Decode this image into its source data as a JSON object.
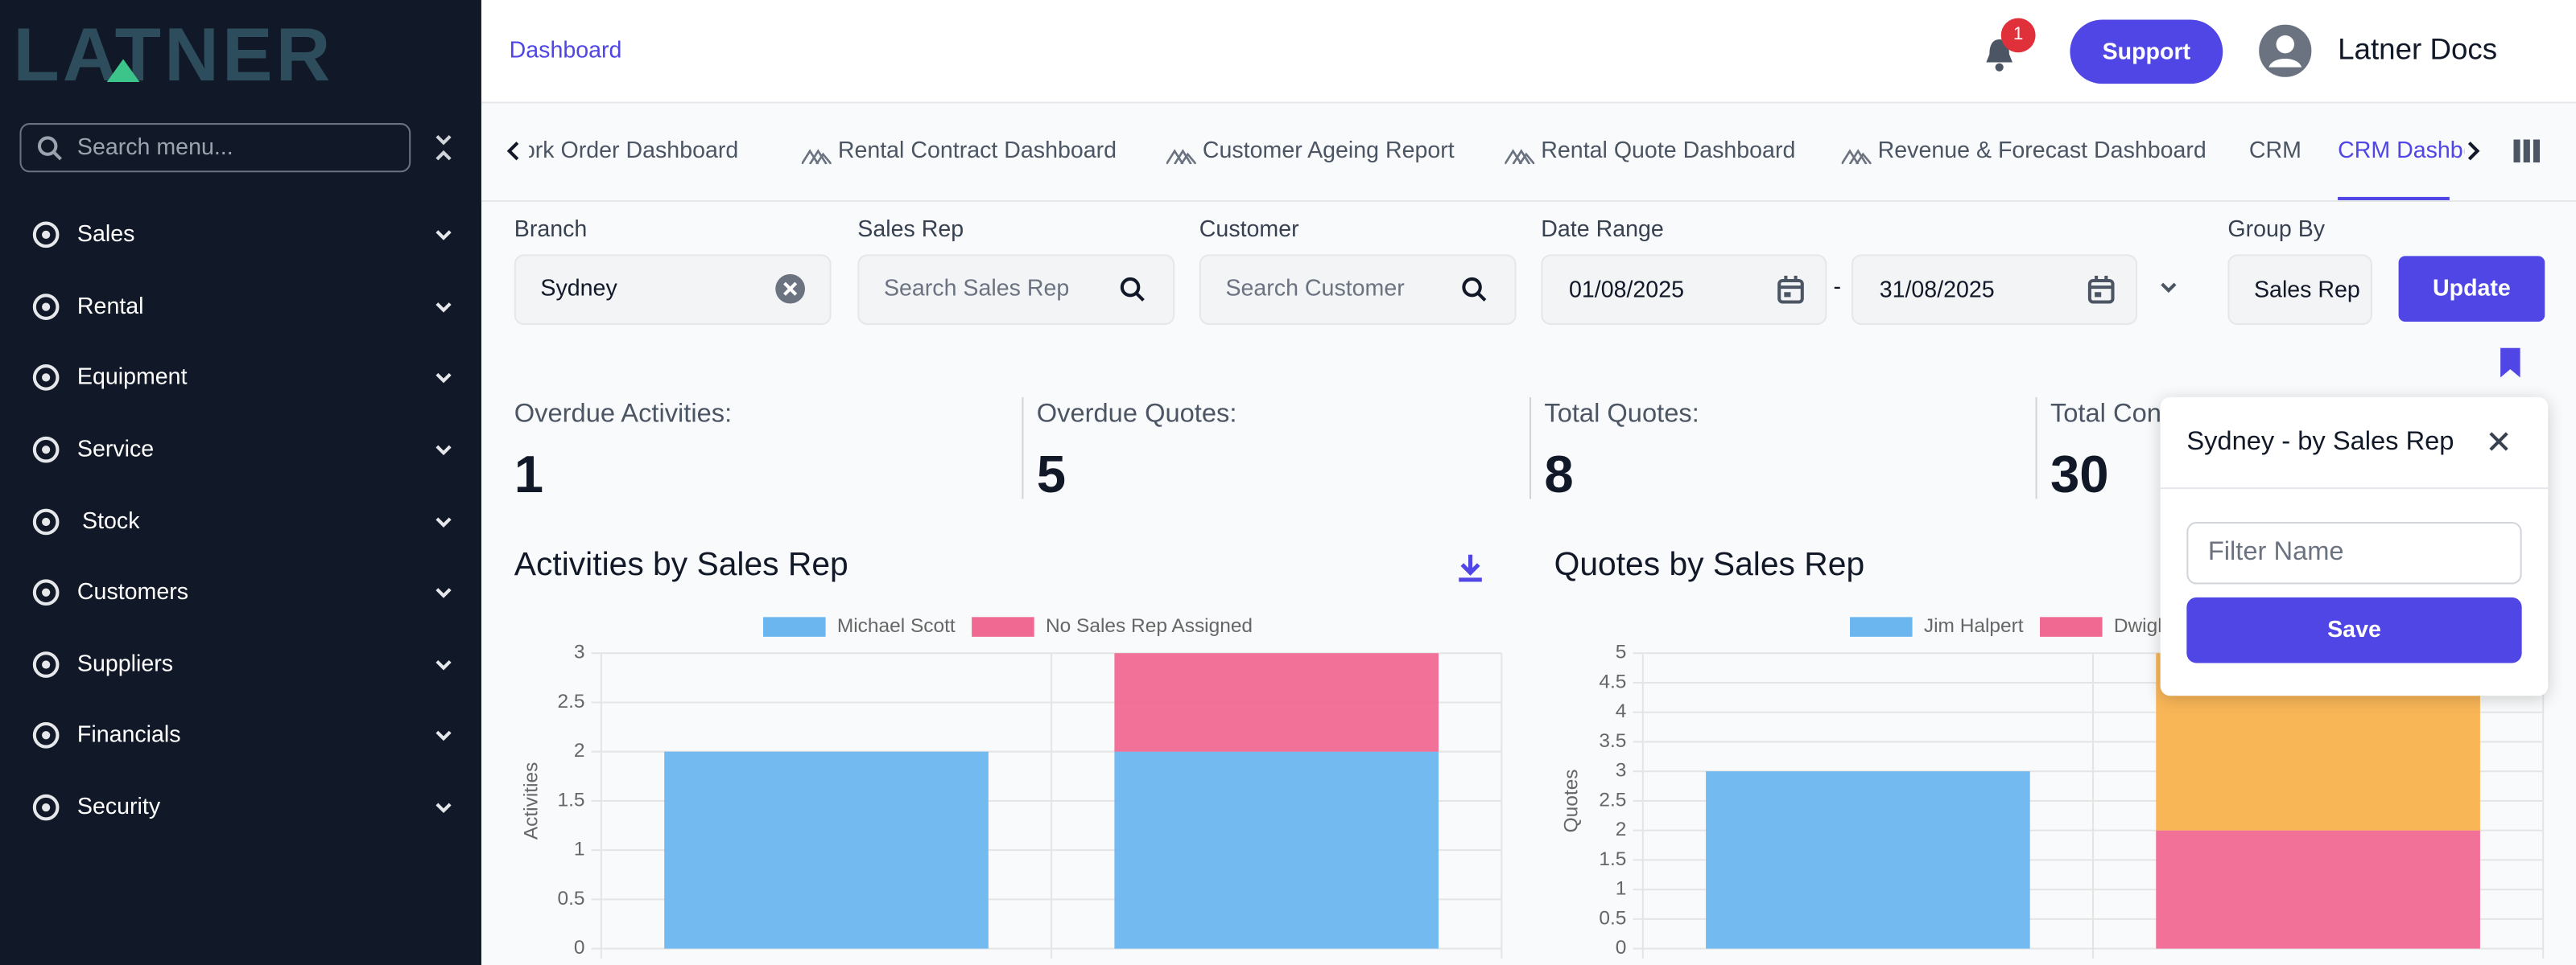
{
  "sidebar": {
    "logo": "LATNER",
    "search_placeholder": "Search menu...",
    "menu": [
      "Sales",
      "Rental",
      "Equipment",
      "Service",
      "Stock",
      "Customers",
      "Suppliers",
      "Financials",
      "Security"
    ]
  },
  "header": {
    "breadcrumb": "Dashboard",
    "notifications": 1,
    "support": "Support",
    "user": "Latner Docs"
  },
  "tabs": [
    "Work Order Dashboard",
    "Rental Contract Dashboard",
    "Customer Ageing Report",
    "Rental Quote Dashboard",
    "Revenue & Forecast Dashboard",
    "CRM",
    "CRM Dashboard"
  ],
  "filters": {
    "branch": {
      "label": "Branch",
      "value": "Sydney"
    },
    "sales_rep": {
      "label": "Sales Rep",
      "placeholder": "Search Sales Rep"
    },
    "customer": {
      "label": "Customer",
      "placeholder": "Search Customer"
    },
    "date_range": {
      "label": "Date Range",
      "from": "01/08/2025",
      "separator": "-",
      "to": "31/08/2025"
    },
    "group_by": {
      "label": "Group By",
      "value": "Sales Rep"
    },
    "update": "Update"
  },
  "kpis": [
    {
      "label": "Overdue Activities:",
      "value": 1
    },
    {
      "label": "Overdue Quotes:",
      "value": 5
    },
    {
      "label": "Total Quotes:",
      "value": 8
    },
    {
      "label": "Total Contracts:",
      "value": 30
    }
  ],
  "save_filter": {
    "title": "Sydney - by Sales Rep",
    "placeholder": "Filter Name",
    "save": "Save"
  },
  "chart_data": [
    {
      "type": "bar",
      "stacked": true,
      "title": "Activities by Sales Rep",
      "y_label": "Activities",
      "categories": [
        null,
        null
      ],
      "series": [
        {
          "name": "Michael Scott",
          "color": "#6cb6f0",
          "values": [
            2,
            2
          ]
        },
        {
          "name": "No Sales Rep Assigned",
          "color": "#f06992",
          "values": [
            0,
            1
          ]
        }
      ],
      "ylim": [
        0,
        3
      ],
      "yticks": [
        0,
        0.5,
        1,
        1.5,
        2,
        2.5,
        3
      ],
      "grid": true,
      "legend": "top"
    },
    {
      "type": "bar",
      "stacked": true,
      "title": "Quotes by Sales Rep",
      "y_label": "Quotes",
      "categories": [
        null,
        null
      ],
      "series": [
        {
          "name": "Jim Halpert",
          "color": "#6cb6f0",
          "values": [
            3,
            0
          ]
        },
        {
          "name": "Dwight Schrute",
          "color": "#f06992",
          "values": [
            0,
            2
          ]
        },
        {
          "color": "#f9b24e",
          "values": [
            0,
            3
          ]
        }
      ],
      "ylim": [
        0,
        5
      ],
      "yticks": [
        0,
        0.5,
        1,
        1.5,
        2,
        2.5,
        3,
        3.5,
        4,
        4.5,
        5
      ],
      "grid": true,
      "legend": "top"
    }
  ]
}
